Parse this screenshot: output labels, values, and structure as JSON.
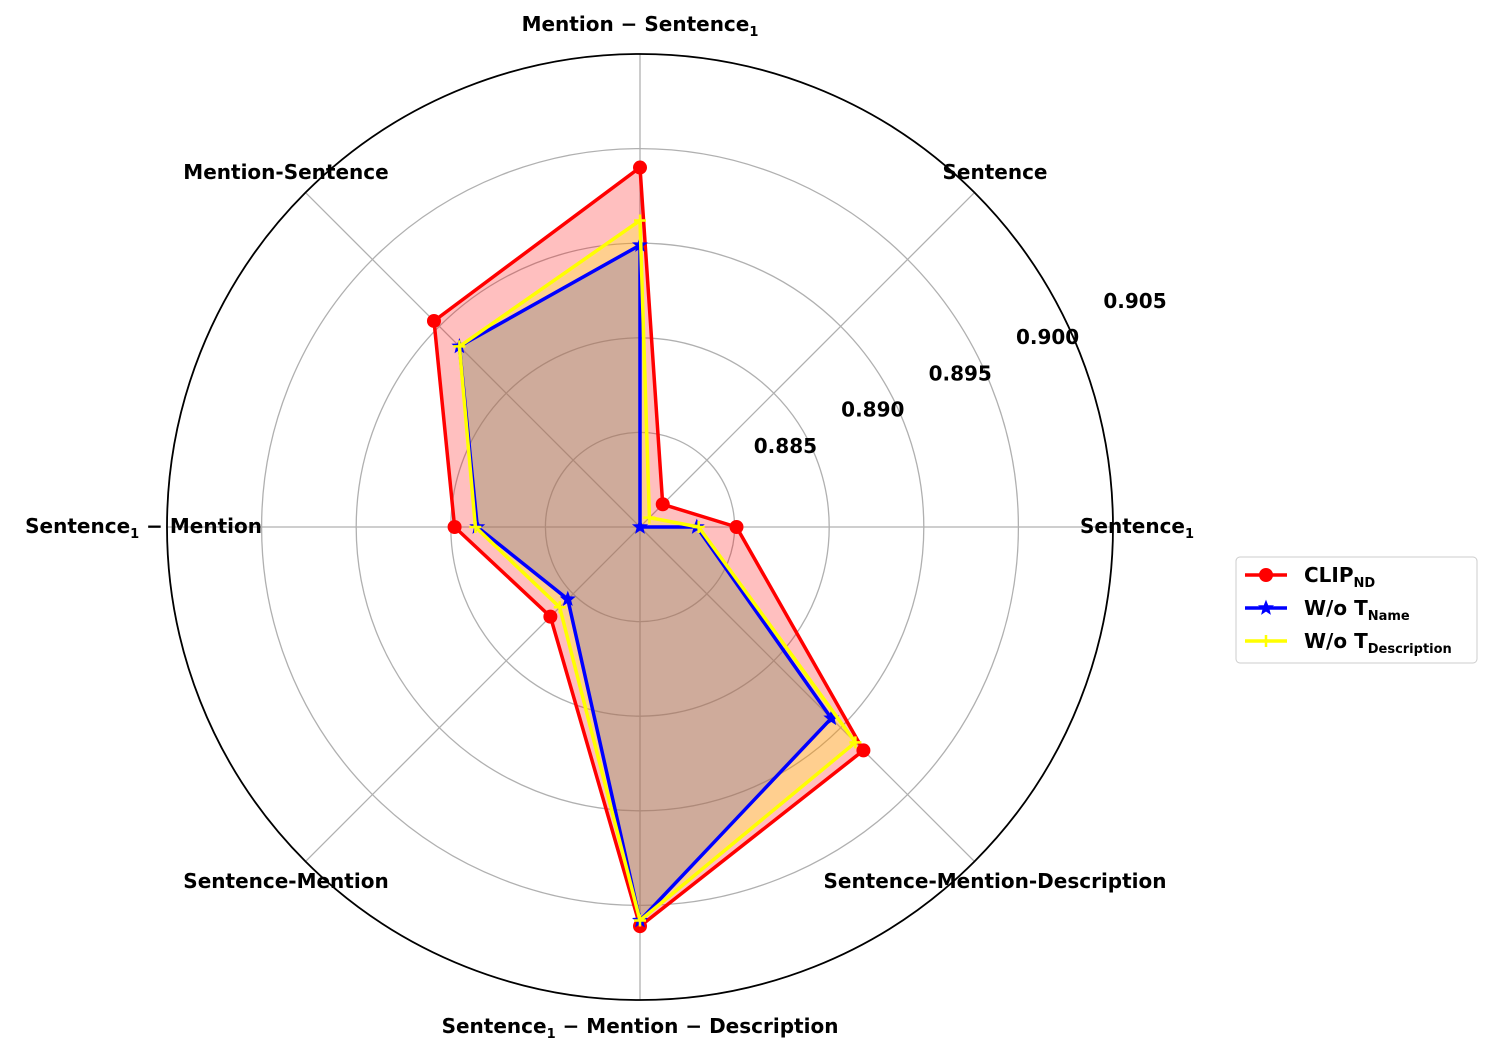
{
  "chart_data": {
    "type": "radar",
    "categories": [
      {
        "main": "Sentence",
        "sub": "1",
        "suffix": ""
      },
      {
        "main": "Sentence",
        "sub": "",
        "suffix": ""
      },
      {
        "main": "Mention − Sentence",
        "sub": "1",
        "suffix": ""
      },
      {
        "main": "Mention-Sentence",
        "sub": "",
        "suffix": ""
      },
      {
        "main": "Sentence",
        "sub": "1",
        "suffix": " − Mention"
      },
      {
        "main": "Sentence-Mention",
        "sub": "",
        "suffix": ""
      },
      {
        "main": "Sentence",
        "sub": "1",
        "suffix": " − Mention − Description"
      },
      {
        "main": "Sentence-Mention-Description",
        "sub": "",
        "suffix": ""
      }
    ],
    "rlim": [
      0.88,
      0.905
    ],
    "rticks": [
      "0.885",
      "0.890",
      "0.895",
      "0.900",
      "0.905"
    ],
    "grid": true,
    "legend_position": "right",
    "series": [
      {
        "name": "CLIP",
        "name_sub": "ND",
        "color": "#ff0000",
        "fill": "#ff0000",
        "fill_opacity": 0.25,
        "marker": "circle",
        "values": [
          0.8851,
          0.8817,
          0.899,
          0.8954,
          0.8898,
          0.8867,
          0.9011,
          0.8967
        ]
      },
      {
        "name": "W/o T",
        "name_sub": "Name",
        "color": "#0000ff",
        "fill": "#0000ff",
        "fill_opacity": 0.25,
        "marker": "star",
        "values": [
          0.883,
          0.88,
          0.8949,
          0.8935,
          0.8886,
          0.8854,
          0.9008,
          0.8943
        ]
      },
      {
        "name": "W/o T",
        "name_sub": "Description",
        "color": "#ffff00",
        "fill": "#ffff00",
        "fill_opacity": 0.25,
        "marker": "plus",
        "values": [
          0.8831,
          0.8807,
          0.8962,
          0.8935,
          0.8887,
          0.886,
          0.9008,
          0.8961
        ]
      }
    ]
  }
}
